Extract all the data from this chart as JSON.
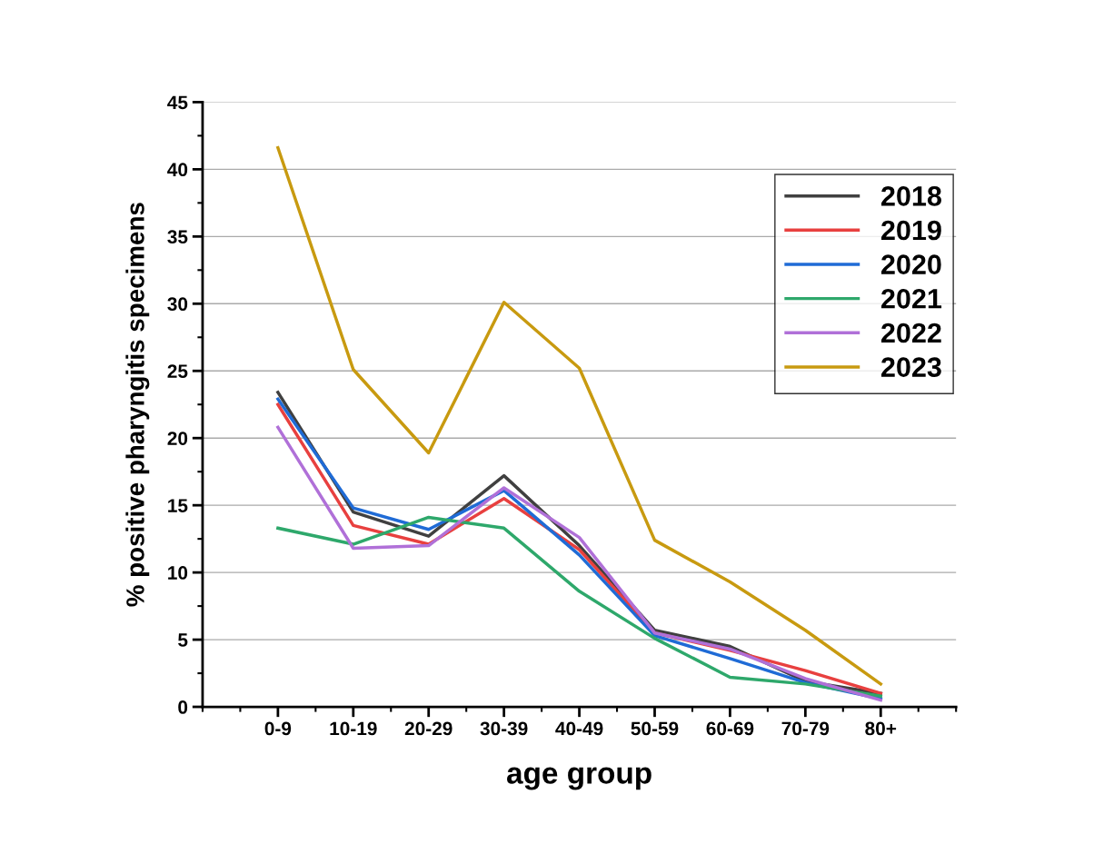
{
  "chart_data": {
    "type": "line",
    "xlabel": "age group",
    "ylabel": "% positive pharyngitis specimens",
    "categories": [
      "0-9",
      "10-19",
      "20-29",
      "30-39",
      "40-49",
      "50-59",
      "60-69",
      "70-79",
      "80+"
    ],
    "series": [
      {
        "name": "2018",
        "color": "#404040",
        "values": [
          23.4,
          14.5,
          12.7,
          17.2,
          12.0,
          5.7,
          4.5,
          1.9,
          1.0
        ]
      },
      {
        "name": "2019",
        "color": "#e8403f",
        "values": [
          22.5,
          13.5,
          12.1,
          15.5,
          11.7,
          5.5,
          4.2,
          2.7,
          1.0
        ]
      },
      {
        "name": "2020",
        "color": "#1f6bd6",
        "values": [
          22.9,
          14.8,
          13.2,
          16.1,
          11.3,
          5.3,
          3.6,
          1.8,
          0.6
        ]
      },
      {
        "name": "2021",
        "color": "#2ea86b",
        "values": [
          13.3,
          12.1,
          14.1,
          13.3,
          8.6,
          5.1,
          2.2,
          1.7,
          0.8
        ]
      },
      {
        "name": "2022",
        "color": "#b070d8",
        "values": [
          20.8,
          11.8,
          12.0,
          16.3,
          12.6,
          5.5,
          4.3,
          2.1,
          0.5
        ]
      },
      {
        "name": "2023",
        "color": "#c89a10",
        "values": [
          41.6,
          25.1,
          18.9,
          30.1,
          25.2,
          12.4,
          9.3,
          5.7,
          1.7
        ]
      }
    ],
    "ylim": [
      0,
      45
    ],
    "yticks": [
      0,
      5,
      10,
      15,
      20,
      25,
      30,
      35,
      40,
      45
    ],
    "grid": "y",
    "legend": "top right",
    "marker": "none",
    "line_style": "solid"
  }
}
